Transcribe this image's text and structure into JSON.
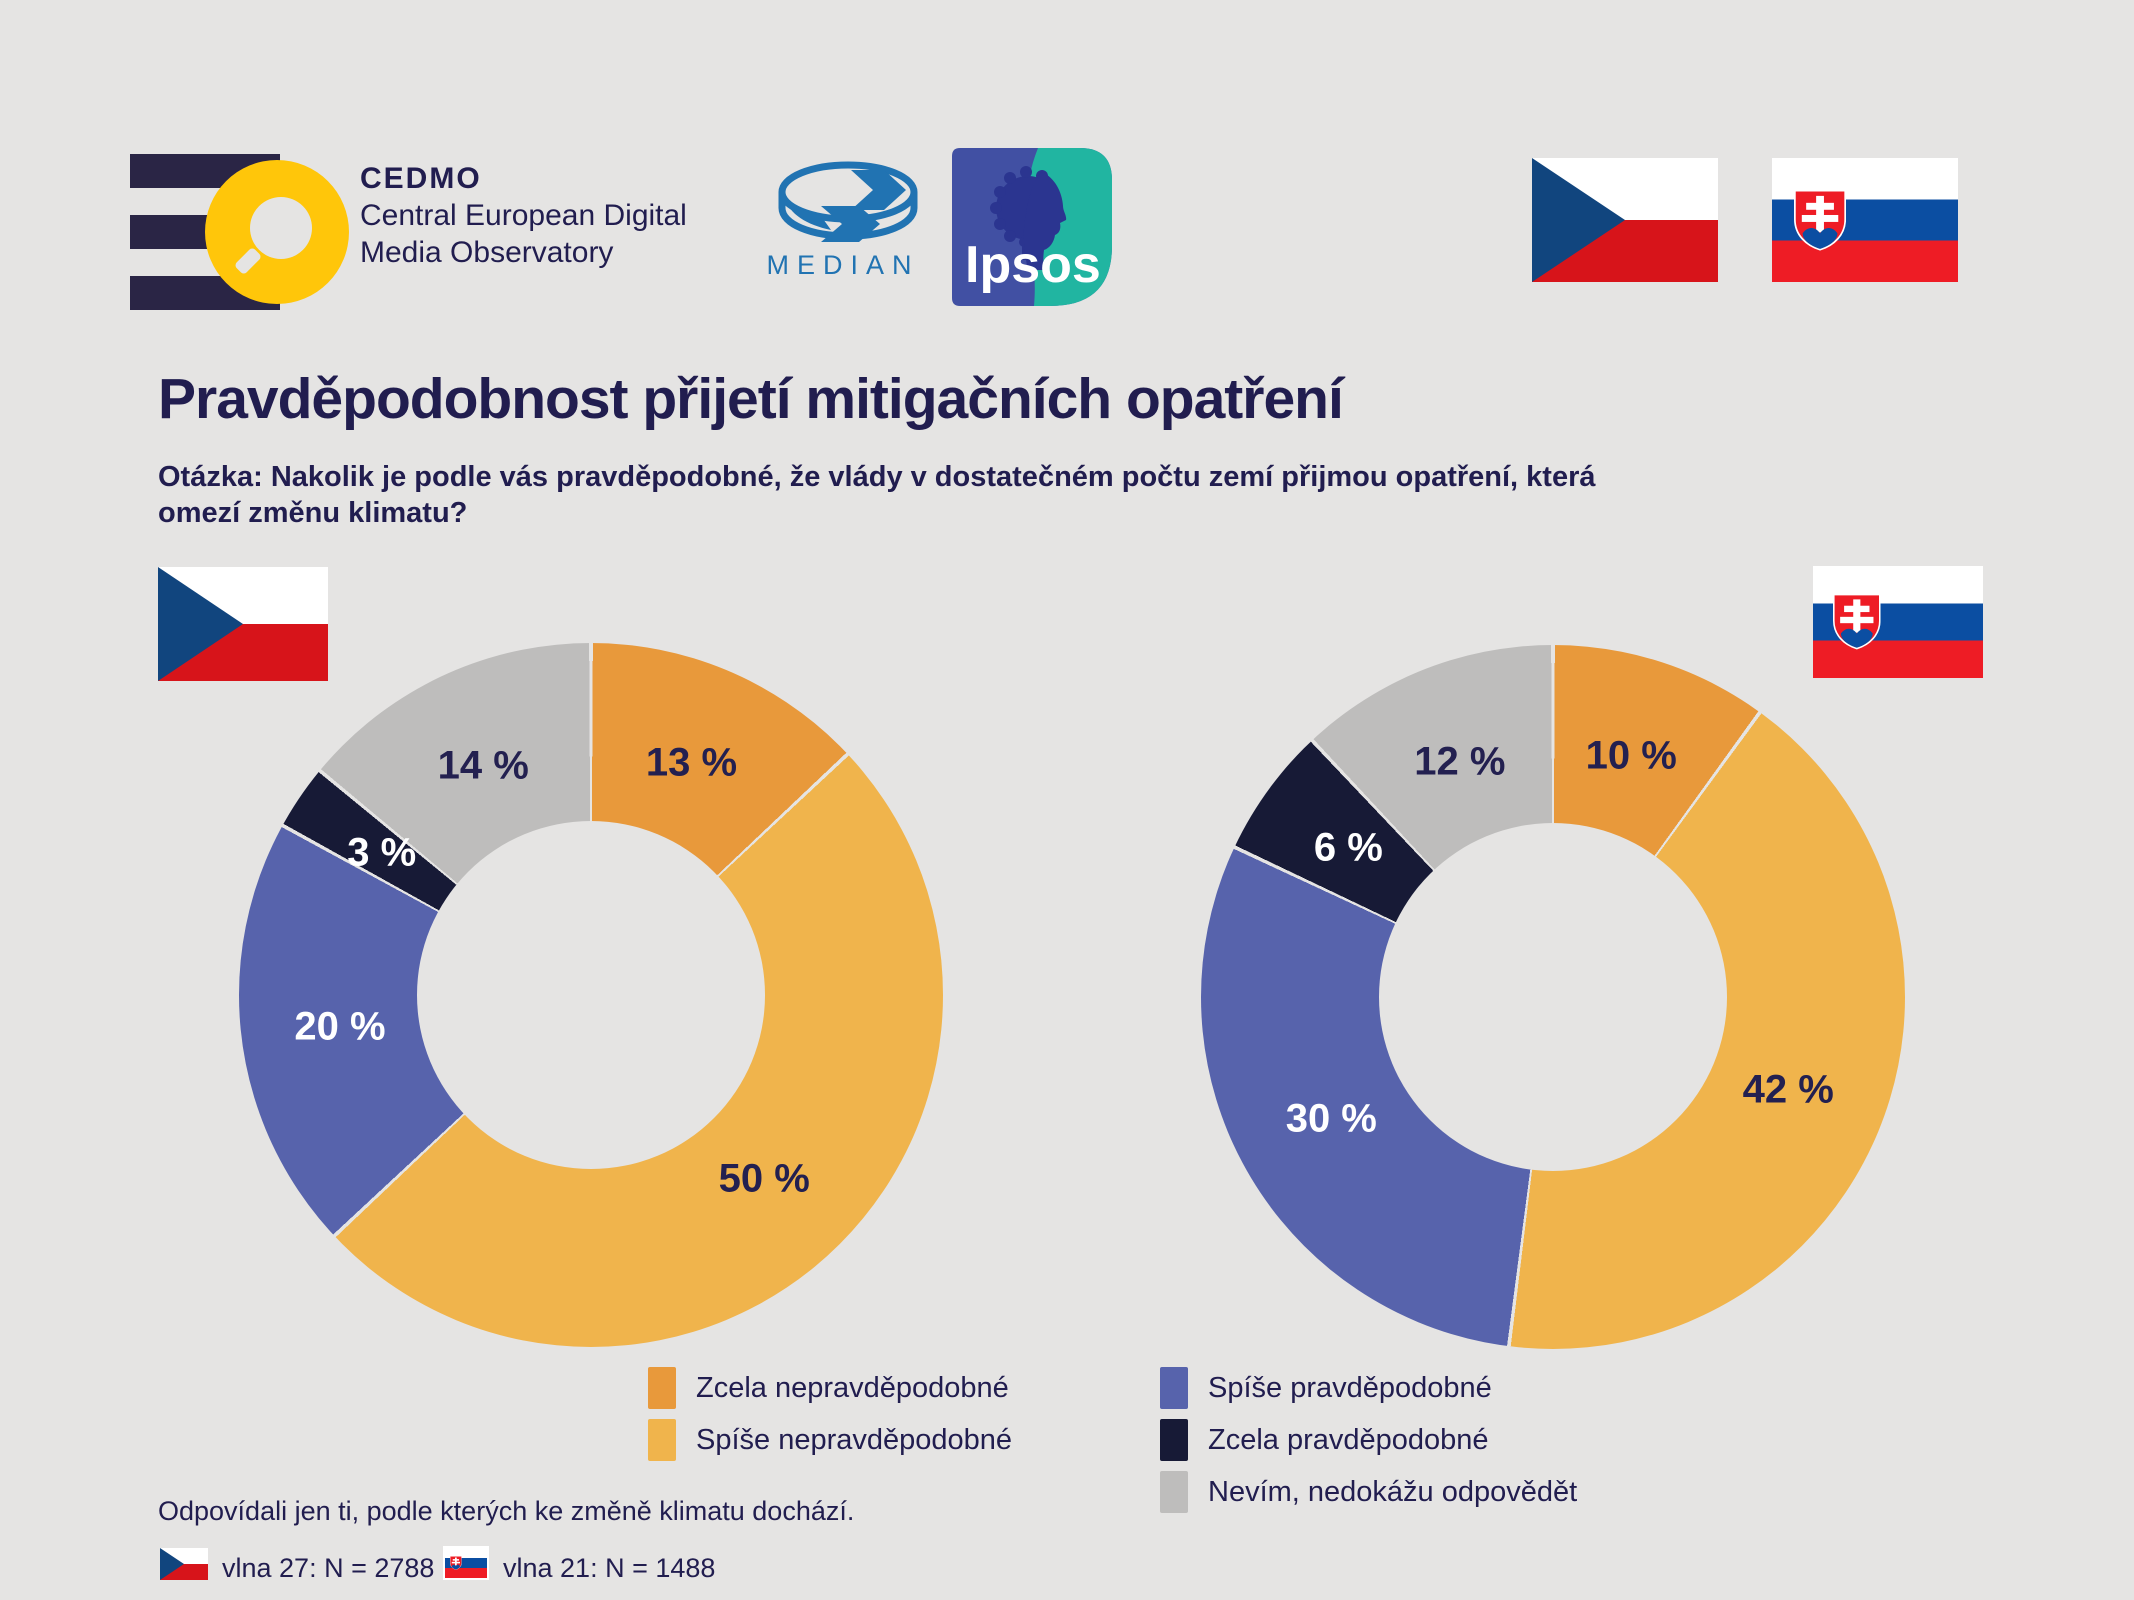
{
  "title": "Pravděpodobnost přijetí mitigačních opatření",
  "question": [
    "Otázka: Nakolik je podle vás pravděpodobné, že vlády v dostatečném počtu zemí přijmou opatření, která",
    "omezí změnu klimatu?"
  ],
  "header": {
    "cedmo_name": "CEDMO",
    "cedmo_line1": "Central European Digital",
    "cedmo_line2": "Media Observatory",
    "median_label": "MEDIAN",
    "ipsos_label": "Ipsos"
  },
  "colors": {
    "background": "#E5E4E3",
    "text_navy": "#211D4F",
    "orange": "#E8993B",
    "yellow": "#F0B44C",
    "purple": "#5763AC",
    "dark_navy": "#171A36",
    "gray": "#BEBDBC",
    "czech_flag_blue": "#11457E",
    "czech_flag_red": "#D7141A",
    "slovak_flag_blue": "#0B4EA2",
    "slovak_flag_red": "#EE1C25",
    "median_blue": "#2173B2",
    "cedmo_yellow": "#FFC60A",
    "ipsos_indigo": "#4150A3",
    "ipsos_teal": "#21B5A1"
  },
  "chart_data": [
    {
      "type": "pie",
      "variant": "donut",
      "country": "Czech Republic",
      "flag": "cz",
      "direction": "clockwise",
      "start_angle_deg": 0,
      "categories": [
        "Zcela nepravděpodobné",
        "Spíše nepravděpodobné",
        "Spíše pravděpodobné",
        "Zcela pravděpodobné",
        "Nevím, nedokážu odpovědět"
      ],
      "values": [
        13,
        50,
        20,
        3,
        14
      ],
      "segments": [
        {
          "label": "Zcela nepravděpodobné",
          "value": 13,
          "display": "13 %",
          "color": "#E8993B",
          "label_color": "#232050"
        },
        {
          "label": "Spíše nepravděpodobné",
          "value": 50,
          "display": "50 %",
          "color": "#F0B44C",
          "label_color": "#232050"
        },
        {
          "label": "Spíše pravděpodobné",
          "value": 20,
          "display": "20 %",
          "color": "#5763AC",
          "label_color": "#FFFFFF"
        },
        {
          "label": "Zcela pravděpodobné",
          "value": 3,
          "display": "3 %",
          "color": "#171A36",
          "label_color": "#FFFFFF"
        },
        {
          "label": "Nevím, nedokážu odpovědět",
          "value": 14,
          "display": "14 %",
          "color": "#BEBDBC",
          "label_color": "#232050"
        }
      ]
    },
    {
      "type": "pie",
      "variant": "donut",
      "country": "Slovakia",
      "flag": "sk",
      "direction": "clockwise",
      "start_angle_deg": 0,
      "categories": [
        "Zcela nepravděpodobné",
        "Spíše nepravděpodobné",
        "Spíše pravděpodobné",
        "Zcela pravděpodobné",
        "Nevím, nedokážu odpovědět"
      ],
      "values": [
        10,
        42,
        30,
        6,
        12
      ],
      "segments": [
        {
          "label": "Zcela nepravděpodobné",
          "value": 10,
          "display": "10 %",
          "color": "#E8993B",
          "label_color": "#232050"
        },
        {
          "label": "Spíše nepravděpodobné",
          "value": 42,
          "display": "42 %",
          "color": "#F0B44C",
          "label_color": "#232050"
        },
        {
          "label": "Spíše pravděpodobné",
          "value": 30,
          "display": "30 %",
          "color": "#5763AC",
          "label_color": "#FFFFFF"
        },
        {
          "label": "Zcela pravděpodobné",
          "value": 6,
          "display": "6 %",
          "color": "#171A36",
          "label_color": "#FFFFFF"
        },
        {
          "label": "Nevím, nedokážu odpovědět",
          "value": 12,
          "display": "12 %",
          "color": "#BEBDBC",
          "label_color": "#232050"
        }
      ]
    }
  ],
  "legend": {
    "columns": [
      [
        {
          "label": "Zcela nepravděpodobné",
          "color": "#E8993B"
        },
        {
          "label": "Spíše nepravděpodobné",
          "color": "#F0B44C"
        }
      ],
      [
        {
          "label": "Spíše pravděpodobné",
          "color": "#5763AC"
        },
        {
          "label": "Zcela pravděpodobné",
          "color": "#171A36"
        },
        {
          "label": "Nevím, nedokážu odpovědět",
          "color": "#BEBDBC"
        }
      ]
    ]
  },
  "footer": {
    "note": "Odpovídali jen ti, podle kterých ke změně klimatu dochází.",
    "cz_sample": "vlna 27: N = 2788",
    "sk_sample": "vlna 21: N = 1488"
  }
}
